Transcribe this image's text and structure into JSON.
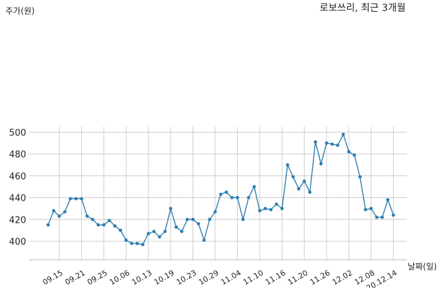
{
  "chart_data": {
    "type": "line",
    "title": "로보쓰리, 최근 3개월",
    "ylabel": "주가(원)",
    "xlabel": "날짜(일)",
    "ylim": [
      390,
      505
    ],
    "yticks": [
      400,
      420,
      440,
      460,
      480,
      500
    ],
    "grid": true,
    "color": "#2e7eb0",
    "xtick_labels": [
      "09.15",
      "09.21",
      "09.25",
      "10.06",
      "10.13",
      "10.19",
      "10.23",
      "10.29",
      "11.04",
      "11.10",
      "11.16",
      "11.20",
      "11.26",
      "12.02",
      "12.08",
      "20.12.14"
    ],
    "xtick_index": [
      2,
      6,
      10,
      14,
      18,
      22,
      26,
      30,
      34,
      38,
      42,
      46,
      50,
      54,
      58,
      62
    ],
    "values": [
      415,
      428,
      423,
      427,
      439,
      439,
      439,
      423,
      420,
      415,
      415,
      419,
      414,
      410,
      401,
      398,
      398,
      397,
      407,
      409,
      404,
      409,
      430,
      413,
      409,
      420,
      420,
      416,
      401,
      420,
      427,
      443,
      445,
      440,
      440,
      420,
      440,
      450,
      428,
      430,
      429,
      434,
      430,
      470,
      459,
      448,
      455,
      445,
      491,
      471,
      490,
      489,
      488,
      498,
      482,
      479,
      459,
      429,
      430,
      422,
      422,
      438,
      424
    ]
  }
}
